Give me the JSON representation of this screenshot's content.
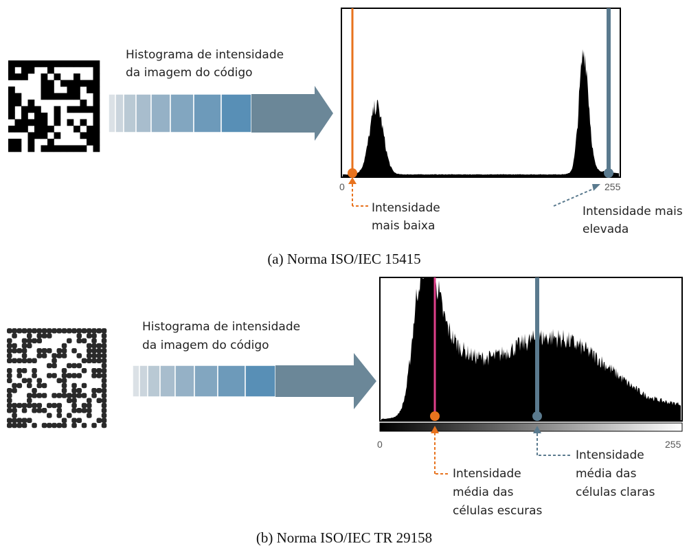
{
  "panel_a": {
    "arrow_label": [
      "Histograma de intensidade",
      "da imagem do código"
    ],
    "axis_min": "0",
    "axis_max": "255",
    "low_label": [
      "Intensidade",
      "mais baixa"
    ],
    "high_label": [
      "Intensidade mais",
      "elevada"
    ],
    "caption": "(a) Norma ISO/IEC 15415"
  },
  "panel_b": {
    "arrow_label": [
      "Histograma de intensidade",
      "da imagem do código"
    ],
    "axis_min": "0",
    "axis_max": "255",
    "dark_label": [
      "Intensidade",
      "média das",
      "células escuras"
    ],
    "light_label": [
      "Intensidade",
      "média das",
      "células claras"
    ],
    "caption": "(b) Norma ISO/IEC TR 29158"
  }
}
